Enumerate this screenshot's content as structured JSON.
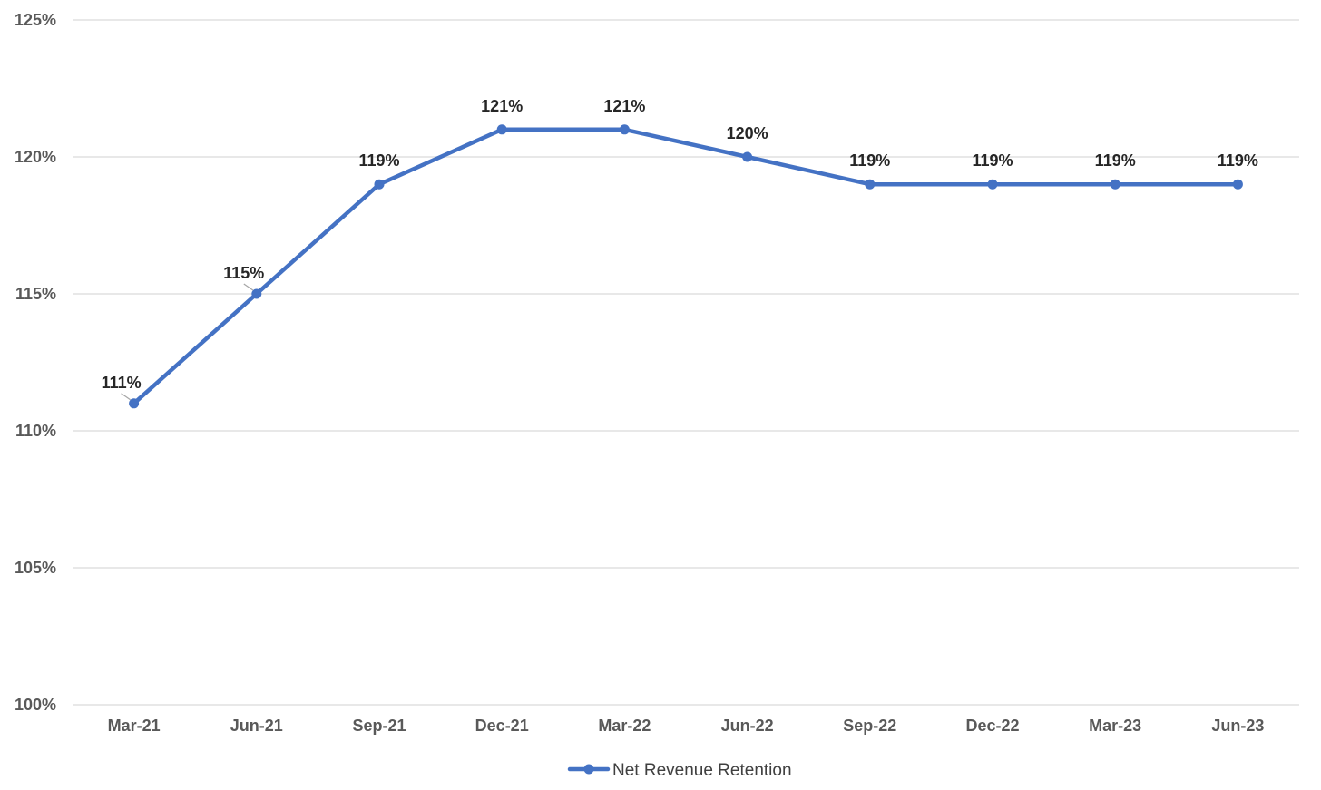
{
  "chart_data": {
    "type": "line",
    "title": "",
    "xlabel": "",
    "ylabel": "",
    "categories": [
      "Mar-21",
      "Jun-21",
      "Sep-21",
      "Dec-21",
      "Mar-22",
      "Jun-22",
      "Sep-22",
      "Dec-22",
      "Mar-23",
      "Jun-23"
    ],
    "series": [
      {
        "name": "Net Revenue Retention",
        "values": [
          111,
          115,
          119,
          121,
          121,
          120,
          119,
          119,
          119,
          119
        ],
        "color": "#4472C4"
      }
    ],
    "data_labels": [
      "111%",
      "115%",
      "119%",
      "121%",
      "121%",
      "120%",
      "119%",
      "119%",
      "119%",
      "119%"
    ],
    "ylim": [
      100,
      125
    ],
    "yticks": [
      100,
      105,
      110,
      115,
      120,
      125
    ],
    "ytick_labels": [
      "100%",
      "105%",
      "110%",
      "115%",
      "120%",
      "125%"
    ],
    "grid": true,
    "legend_position": "bottom"
  }
}
